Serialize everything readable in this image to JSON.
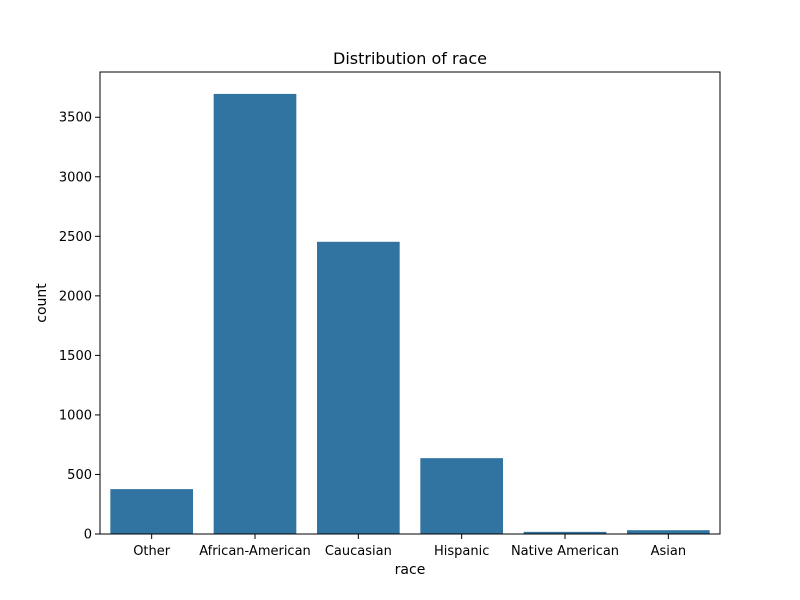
{
  "chart_data": {
    "type": "bar",
    "title": "Distribution of race",
    "xlabel": "race",
    "ylabel": "count",
    "categories": [
      "Other",
      "African-American",
      "Caucasian",
      "Hispanic",
      "Native American",
      "Asian"
    ],
    "values": [
      377,
      3696,
      2454,
      637,
      18,
      32
    ],
    "ylim": [
      0,
      3880
    ],
    "yticks": [
      0,
      500,
      1000,
      1500,
      2000,
      2500,
      3000,
      3500
    ],
    "grid": false,
    "bar_color": "#3274a1"
  }
}
